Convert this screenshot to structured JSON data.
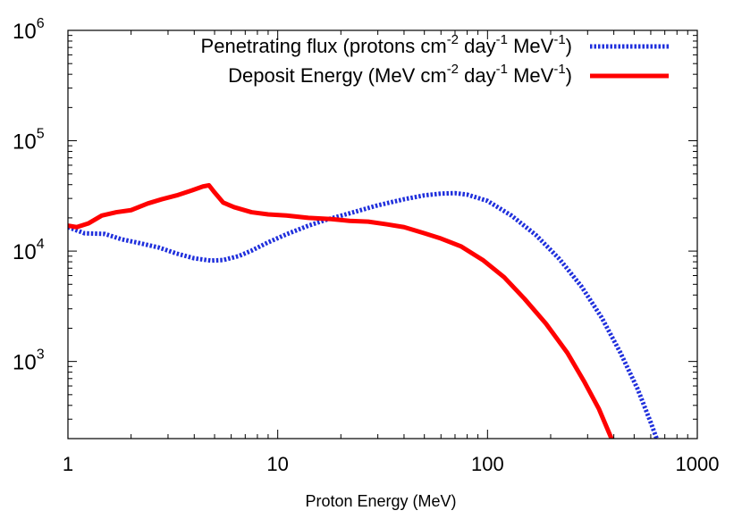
{
  "chart_data": {
    "type": "line",
    "xlabel": "Proton Energy (MeV)",
    "xscale": "log",
    "yscale": "log",
    "xlim": [
      1,
      1000
    ],
    "ylim": [
      200,
      1000000
    ],
    "grid": false,
    "legend_position": "top-right",
    "x_ticks": [
      {
        "value": 1,
        "label": "1"
      },
      {
        "value": 10,
        "label": "10"
      },
      {
        "value": 100,
        "label": "100"
      },
      {
        "value": 1000,
        "label": "1000"
      }
    ],
    "y_ticks": [
      {
        "value": 1000,
        "base": "10",
        "exp": "3"
      },
      {
        "value": 10000,
        "base": "10",
        "exp": "4"
      },
      {
        "value": 100000,
        "base": "10",
        "exp": "5"
      },
      {
        "value": 1000000,
        "base": "10",
        "exp": "6"
      }
    ],
    "series": [
      {
        "name": "Penetrating flux (protons cm-2 day-1 MeV-1)",
        "legend_parts": {
          "a": "Penetrating flux (protons cm",
          "a_sup": "-2",
          "b": " day",
          "b_sup": "-1",
          "c": " MeV",
          "c_sup": "-1",
          "d": ")"
        },
        "color": "#1f2fdc",
        "style": "dotted",
        "points": [
          [
            1.0,
            16500
          ],
          [
            1.2,
            14500
          ],
          [
            1.5,
            14300
          ],
          [
            1.8,
            12800
          ],
          [
            2.2,
            11800
          ],
          [
            2.7,
            10800
          ],
          [
            3.3,
            9500
          ],
          [
            4.0,
            8600
          ],
          [
            4.8,
            8200
          ],
          [
            5.5,
            8300
          ],
          [
            6.5,
            9000
          ],
          [
            7.5,
            10100
          ],
          [
            9.0,
            12000
          ],
          [
            11.0,
            14200
          ],
          [
            14.0,
            17000
          ],
          [
            17.0,
            19200
          ],
          [
            22.0,
            22000
          ],
          [
            30.0,
            26000
          ],
          [
            40.0,
            29500
          ],
          [
            50.0,
            32000
          ],
          [
            60.0,
            33200
          ],
          [
            70.0,
            33500
          ],
          [
            80.0,
            32500
          ],
          [
            100.0,
            28500
          ],
          [
            130.0,
            21000
          ],
          [
            170.0,
            14000
          ],
          [
            220.0,
            8500
          ],
          [
            280.0,
            4800
          ],
          [
            350.0,
            2500
          ],
          [
            430.0,
            1200
          ],
          [
            520.0,
            560
          ],
          [
            600.0,
            280
          ],
          [
            640.0,
            200
          ]
        ]
      },
      {
        "name": "Deposit Energy (MeV cm-2 day-1 MeV-1)",
        "legend_parts": {
          "a": "Deposit Energy (MeV cm",
          "a_sup": "-2",
          "b": " day",
          "b_sup": "-1",
          "c": " MeV",
          "c_sup": "-1",
          "d": ")"
        },
        "color": "#ff0000",
        "style": "solid",
        "points": [
          [
            1.0,
            17000
          ],
          [
            1.1,
            16500
          ],
          [
            1.25,
            17800
          ],
          [
            1.45,
            21000
          ],
          [
            1.7,
            22500
          ],
          [
            2.0,
            23500
          ],
          [
            2.4,
            27000
          ],
          [
            2.8,
            29500
          ],
          [
            3.3,
            32000
          ],
          [
            3.9,
            35500
          ],
          [
            4.4,
            38500
          ],
          [
            4.7,
            39500
          ],
          [
            5.0,
            34000
          ],
          [
            5.5,
            27500
          ],
          [
            6.2,
            25000
          ],
          [
            7.5,
            22500
          ],
          [
            9.0,
            21500
          ],
          [
            11.0,
            21000
          ],
          [
            14.0,
            20000
          ],
          [
            18.0,
            19500
          ],
          [
            22.0,
            18800
          ],
          [
            27.0,
            18500
          ],
          [
            33.0,
            17500
          ],
          [
            40.0,
            16500
          ],
          [
            50.0,
            14500
          ],
          [
            60.0,
            13000
          ],
          [
            75.0,
            11000
          ],
          [
            95.0,
            8300
          ],
          [
            120.0,
            5800
          ],
          [
            150.0,
            3700
          ],
          [
            190.0,
            2200
          ],
          [
            240.0,
            1200
          ],
          [
            290.0,
            650
          ],
          [
            340.0,
            370
          ],
          [
            390.0,
            200
          ]
        ]
      }
    ]
  }
}
